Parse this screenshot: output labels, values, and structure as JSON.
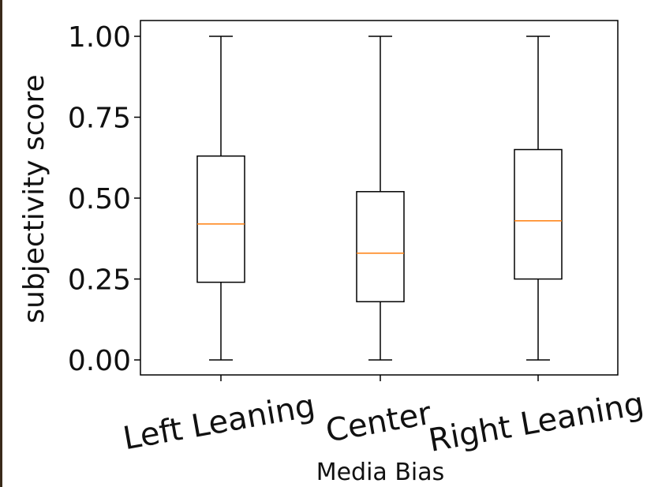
{
  "chart_data": {
    "type": "box",
    "xlabel": "Media Bias",
    "ylabel": "subjectivity score",
    "ylim": [
      -0.04,
      1.05
    ],
    "yticks": [
      0.0,
      0.25,
      0.5,
      0.75,
      1.0
    ],
    "ytick_labels": [
      "0.00",
      "0.25",
      "0.50",
      "0.75",
      "1.00"
    ],
    "categories": [
      "Left Leaning",
      "Center",
      "Right Leaning"
    ],
    "boxes": [
      {
        "category": "Left Leaning",
        "whislo": 0.0,
        "q1": 0.24,
        "median": 0.42,
        "q3": 0.63,
        "whishi": 1.0
      },
      {
        "category": "Center",
        "whislo": 0.0,
        "q1": 0.18,
        "median": 0.33,
        "q3": 0.52,
        "whishi": 1.0
      },
      {
        "category": "Right Leaning",
        "whislo": 0.0,
        "q1": 0.25,
        "median": 0.43,
        "q3": 0.65,
        "whishi": 1.0
      }
    ],
    "grid": false,
    "colors": {
      "box": "#000000",
      "median": "#ff7f0e"
    }
  }
}
